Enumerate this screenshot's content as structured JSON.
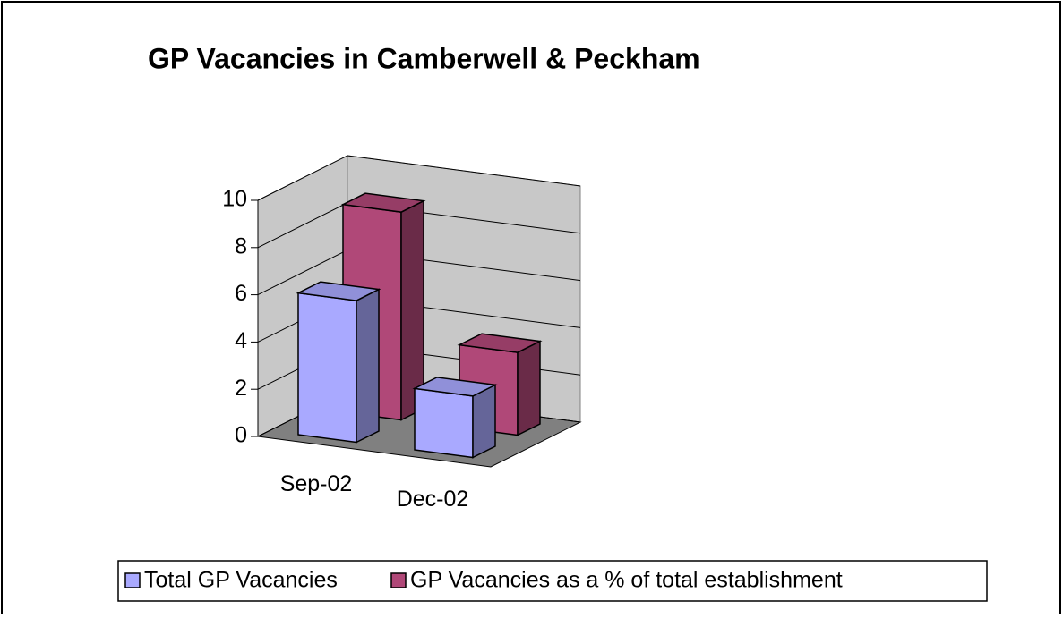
{
  "chart_data": {
    "type": "bar3d",
    "title": "GP Vacancies in Camberwell & Peckham",
    "categories": [
      "Sep-02",
      "Dec-02"
    ],
    "series": [
      {
        "name": "Total GP Vacancies",
        "color": "#a9a9ff",
        "values": [
          6,
          2.6
        ]
      },
      {
        "name": "GP Vacancies as a % of total establishment",
        "color": "#b04878",
        "values": [
          8.8,
          3.5
        ]
      }
    ],
    "ylim": [
      0,
      10
    ],
    "yticks": [
      0,
      2,
      4,
      6,
      8,
      10
    ],
    "grid": true,
    "legend": "bottom"
  }
}
